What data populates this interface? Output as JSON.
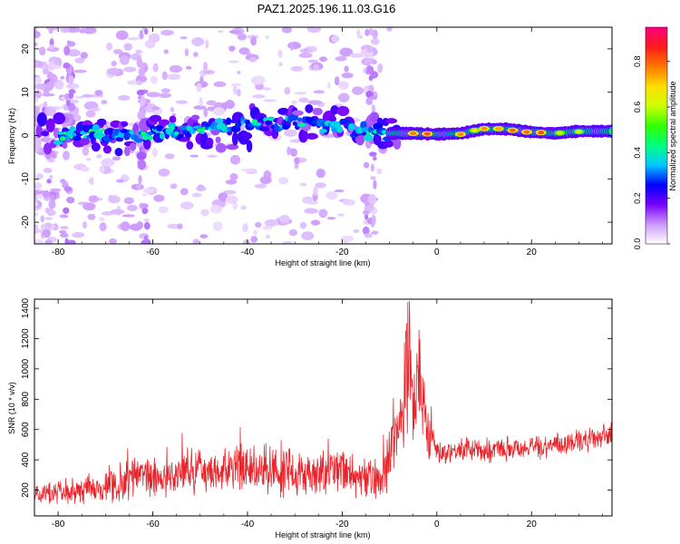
{
  "title": "PAZ1.2025.196.11.03.G16",
  "chart_data": [
    {
      "type": "heatmap",
      "xlabel": "Height of straight line (km)",
      "ylabel": "Frequency (Hz)",
      "xlim": [
        -85,
        37
      ],
      "ylim": [
        -25,
        25
      ],
      "xticks": [
        "-80",
        "-60",
        "-40",
        "-20",
        "0",
        "20"
      ],
      "yticks": [
        "-20",
        "-10",
        "0",
        "10",
        "20"
      ],
      "colorbar": {
        "label": "Normalized spectral amplitude",
        "range": [
          0,
          0.95
        ],
        "ticks": [
          "0.0",
          "0.2",
          "0.4",
          "0.6",
          "0.8"
        ],
        "colors": [
          "#ffffff",
          "#cc99ff",
          "#7700ff",
          "#0000ff",
          "#00c8ff",
          "#00ff80",
          "#33ff00",
          "#ccff00",
          "#ffdd00",
          "#ff7700",
          "#ff1a1a",
          "#ff0080"
        ]
      },
      "ridge": {
        "x": [
          -85,
          -80,
          -75,
          -70,
          -65,
          -60,
          -55,
          -50,
          -45,
          -40,
          -35,
          -30,
          -25,
          -20,
          -15,
          -10,
          -5,
          0,
          5,
          10,
          15,
          20,
          25,
          30,
          37
        ],
        "y": [
          -1.5,
          -0.5,
          0.5,
          0.5,
          -0.5,
          0.5,
          1.0,
          1.5,
          2.0,
          2.5,
          3.0,
          3.0,
          2.5,
          2.0,
          1.0,
          0.5,
          0.5,
          0.3,
          0.5,
          1.5,
          1.5,
          0.8,
          0.5,
          1.0,
          1.0
        ]
      }
    },
    {
      "type": "line",
      "xlabel": "Height of straight line (km)",
      "ylabel": "SNR (10 * v/v)",
      "xlim": [
        -85,
        37
      ],
      "ylim": [
        30,
        1460
      ],
      "xticks": [
        "-80",
        "-60",
        "-40",
        "-20",
        "0",
        "20"
      ],
      "yticks": [
        "200",
        "400",
        "600",
        "800",
        "1000",
        "1200",
        "1400"
      ],
      "series": [
        {
          "color": "#e8242b",
          "x": [
            -85,
            -80,
            -75,
            -70,
            -65,
            -64,
            -60,
            -55,
            -50,
            -45,
            -40,
            -35,
            -30,
            -25,
            -20,
            -16,
            -12,
            -10,
            -8,
            -7,
            -6,
            -5,
            -4,
            -3,
            -2,
            -1,
            0,
            5,
            10,
            15,
            20,
            25,
            30,
            37
          ],
          "y": [
            160,
            180,
            200,
            220,
            250,
            320,
            280,
            300,
            320,
            330,
            340,
            330,
            320,
            330,
            340,
            280,
            250,
            420,
            700,
            600,
            1100,
            700,
            1000,
            780,
            650,
            580,
            450,
            470,
            460,
            480,
            480,
            500,
            520,
            560
          ]
        }
      ]
    }
  ]
}
